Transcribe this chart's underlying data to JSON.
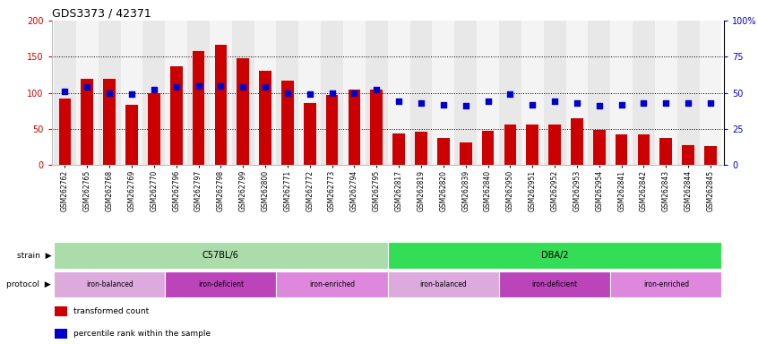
{
  "title": "GDS3373 / 42371",
  "samples": [
    "GSM262762",
    "GSM262765",
    "GSM262768",
    "GSM262769",
    "GSM262770",
    "GSM262796",
    "GSM262797",
    "GSM262798",
    "GSM262799",
    "GSM262800",
    "GSM262771",
    "GSM262772",
    "GSM262773",
    "GSM262794",
    "GSM262795",
    "GSM262817",
    "GSM262819",
    "GSM262820",
    "GSM262839",
    "GSM262840",
    "GSM262950",
    "GSM262951",
    "GSM262952",
    "GSM262953",
    "GSM262954",
    "GSM262841",
    "GSM262842",
    "GSM262843",
    "GSM262844",
    "GSM262845"
  ],
  "bar_values": [
    92,
    120,
    120,
    84,
    99,
    137,
    158,
    167,
    148,
    130,
    117,
    86,
    97,
    105,
    104,
    44,
    46,
    37,
    32,
    48,
    56,
    56,
    56,
    65,
    49,
    43,
    43,
    37,
    28,
    27
  ],
  "percentile_values": [
    51,
    54,
    50,
    49,
    52,
    54,
    55,
    55,
    54,
    54,
    50,
    49,
    50,
    50,
    52,
    44,
    43,
    42,
    41,
    44,
    49,
    42,
    44,
    43,
    41,
    42,
    43,
    43,
    43,
    43
  ],
  "bar_color": "#cc0000",
  "percentile_color": "#0000cc",
  "ylim_left": [
    0,
    200
  ],
  "ylim_right": [
    0,
    100
  ],
  "yticks_left": [
    0,
    50,
    100,
    150,
    200
  ],
  "yticks_right": [
    0,
    25,
    50,
    75,
    100
  ],
  "ytick_labels_right": [
    "0",
    "25",
    "50",
    "75",
    "100%"
  ],
  "strain_groups": [
    {
      "label": "C57BL/6",
      "start": 0,
      "end": 15,
      "color": "#aaddaa"
    },
    {
      "label": "DBA/2",
      "start": 15,
      "end": 30,
      "color": "#33dd55"
    }
  ],
  "protocol_groups": [
    {
      "label": "iron-balanced",
      "start": 0,
      "end": 5,
      "color": "#ddaadd"
    },
    {
      "label": "iron-deficient",
      "start": 5,
      "end": 10,
      "color": "#bb44bb"
    },
    {
      "label": "iron-enriched",
      "start": 10,
      "end": 15,
      "color": "#dd88dd"
    },
    {
      "label": "iron-balanced",
      "start": 15,
      "end": 20,
      "color": "#ddaadd"
    },
    {
      "label": "iron-deficient",
      "start": 20,
      "end": 25,
      "color": "#bb44bb"
    },
    {
      "label": "iron-enriched",
      "start": 25,
      "end": 30,
      "color": "#dd88dd"
    }
  ],
  "legend_items": [
    {
      "label": "transformed count",
      "color": "#cc0000"
    },
    {
      "label": "percentile rank within the sample",
      "color": "#0000cc"
    }
  ],
  "bg_color": "#ffffff",
  "col_stripe_even": "#e8e8e8",
  "col_stripe_odd": "#f4f4f4",
  "dotted_grid_vals": [
    50,
    100,
    150
  ],
  "title_fontsize": 9,
  "tick_fontsize": 5.5,
  "bar_width": 0.55
}
